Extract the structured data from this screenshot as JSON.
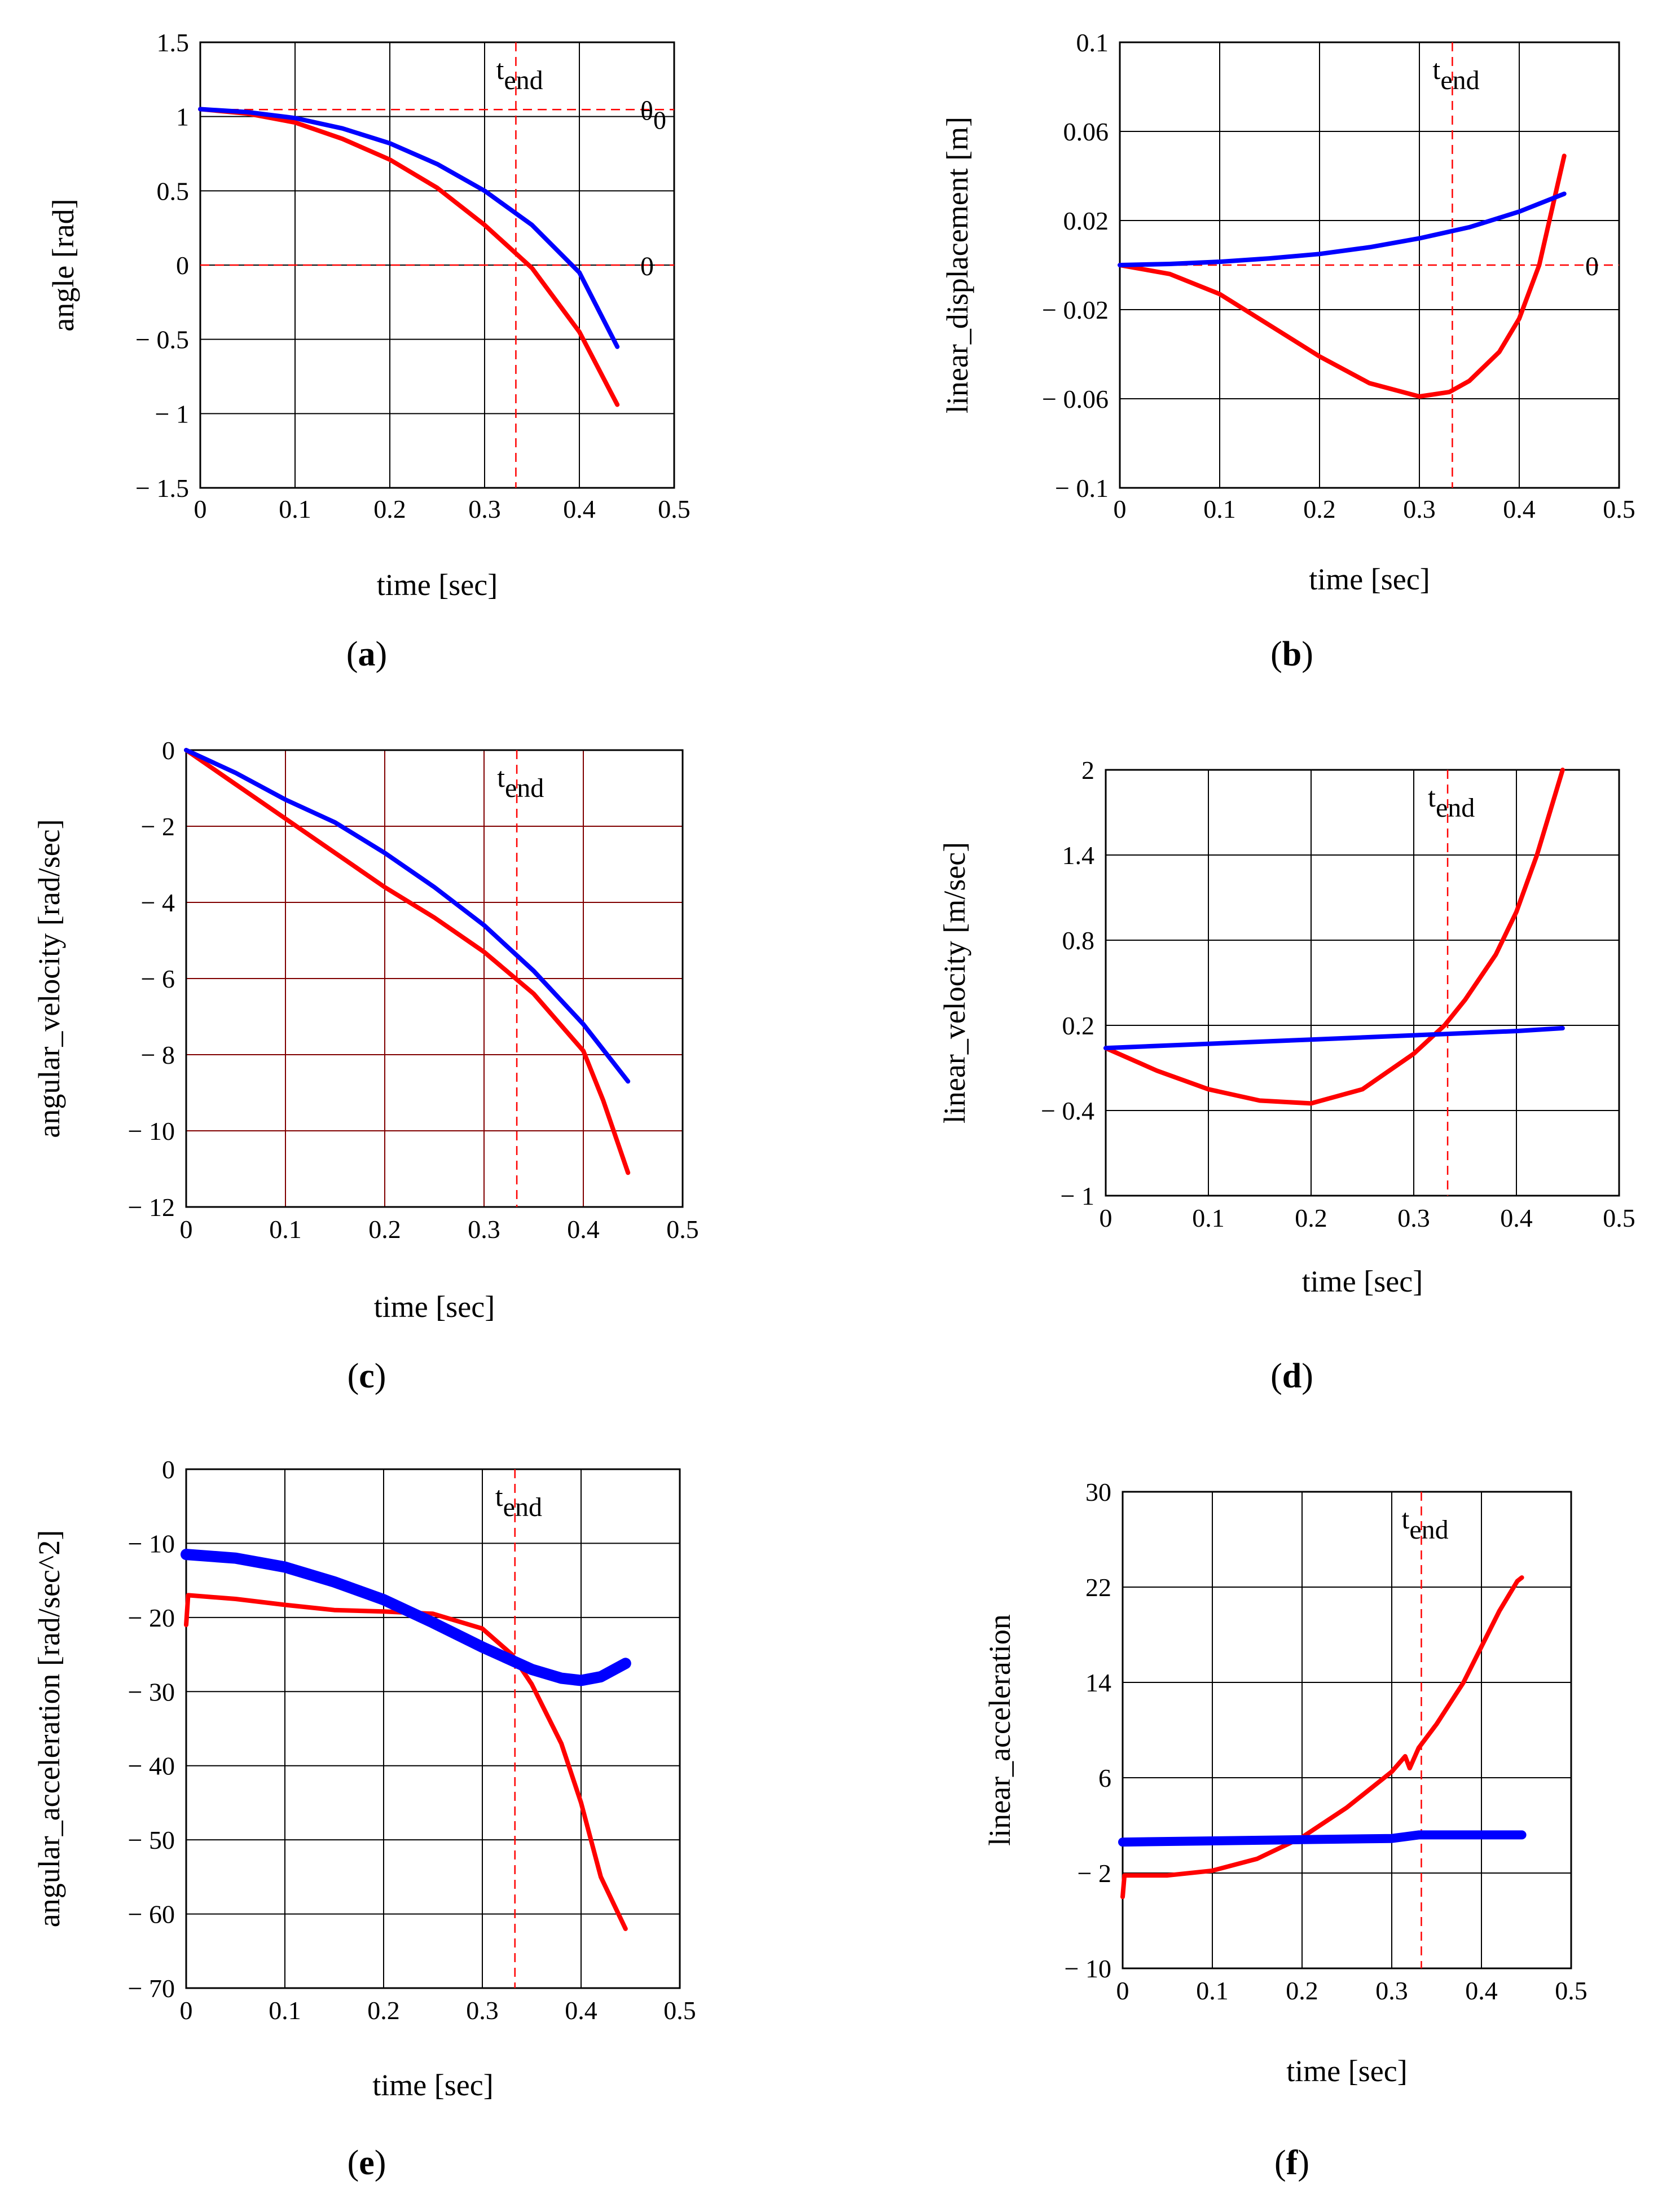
{
  "figure": {
    "panel_labels": [
      "(a)",
      "(b)",
      "(c)",
      "(d)",
      "(e)",
      "(f)"
    ],
    "tend_label": "t",
    "tend_subscript": "end"
  },
  "colors": {
    "series_red": "#ff0000",
    "series_blue": "#0000ff",
    "grid": "#000000",
    "grid_c": "#800000",
    "marker": "#ff0000"
  },
  "chart_data": [
    {
      "id": "a",
      "type": "line",
      "xlabel": "time [sec]",
      "ylabel": "angle [rad]",
      "xlim": [
        0,
        0.5
      ],
      "ylim": [
        -1.5,
        1.5
      ],
      "xticks": [
        0,
        0.1,
        0.2,
        0.3,
        0.4,
        0.5
      ],
      "xtick_labels": [
        "0",
        "0.1",
        "0.2",
        "0.3",
        "0.4",
        "0.5"
      ],
      "yticks": [
        1.5,
        1,
        0.5,
        0,
        -0.5,
        -1,
        -1.5
      ],
      "ytick_labels": [
        "1.5",
        "1",
        "0.5",
        "0",
        "− 0.5",
        "− 1",
        "− 1.5"
      ],
      "tend": 0.333,
      "hlines": [
        {
          "y": 1.047,
          "label": "θ",
          "subscript": "0"
        },
        {
          "y": 0,
          "label": "0",
          "subscript": ""
        }
      ],
      "series": [
        {
          "name": "red",
          "x": [
            0,
            0.05,
            0.1,
            0.15,
            0.2,
            0.25,
            0.3,
            0.35,
            0.4,
            0.44
          ],
          "y": [
            1.05,
            1.02,
            0.96,
            0.85,
            0.71,
            0.52,
            0.27,
            -0.02,
            -0.45,
            -0.94
          ]
        },
        {
          "name": "blue",
          "x": [
            0,
            0.05,
            0.1,
            0.15,
            0.2,
            0.25,
            0.3,
            0.35,
            0.4,
            0.44
          ],
          "y": [
            1.05,
            1.03,
            0.99,
            0.92,
            0.82,
            0.68,
            0.5,
            0.27,
            -0.05,
            -0.55
          ]
        }
      ]
    },
    {
      "id": "b",
      "type": "line",
      "xlabel": "time [sec]",
      "ylabel": "linear_displacement [m]",
      "xlim": [
        0,
        0.5
      ],
      "ylim": [
        -0.1,
        0.1
      ],
      "xticks": [
        0,
        0.1,
        0.2,
        0.3,
        0.4,
        0.5
      ],
      "xtick_labels": [
        "0",
        "0.1",
        "0.2",
        "0.3",
        "0.4",
        "0.5"
      ],
      "yticks": [
        0.1,
        0.06,
        0.02,
        -0.02,
        -0.06,
        -0.1
      ],
      "ytick_labels": [
        "0.1",
        "0.06",
        "0.02",
        "− 0.02",
        "− 0.06",
        "− 0.1"
      ],
      "tend": 0.333,
      "hlines": [
        {
          "y": 0,
          "label": "0",
          "subscript": ""
        }
      ],
      "series": [
        {
          "name": "red",
          "x": [
            0,
            0.05,
            0.1,
            0.15,
            0.2,
            0.25,
            0.3,
            0.33,
            0.35,
            0.38,
            0.4,
            0.42,
            0.445
          ],
          "y": [
            0,
            -0.004,
            -0.013,
            -0.027,
            -0.041,
            -0.053,
            -0.059,
            -0.057,
            -0.052,
            -0.039,
            -0.024,
            0.0,
            0.049
          ]
        },
        {
          "name": "blue",
          "x": [
            0,
            0.05,
            0.1,
            0.15,
            0.2,
            0.25,
            0.3,
            0.35,
            0.4,
            0.445
          ],
          "y": [
            0,
            0.0005,
            0.0015,
            0.003,
            0.005,
            0.008,
            0.012,
            0.017,
            0.024,
            0.032
          ]
        }
      ]
    },
    {
      "id": "c",
      "type": "line",
      "xlabel": "time [sec]",
      "ylabel": "angular_velocity [rad/sec]",
      "xlim": [
        0,
        0.5
      ],
      "ylim": [
        -12,
        0
      ],
      "xticks": [
        0,
        0.1,
        0.2,
        0.3,
        0.4,
        0.5
      ],
      "xtick_labels": [
        "0",
        "0.1",
        "0.2",
        "0.3",
        "0.4",
        "0.5"
      ],
      "yticks": [
        0,
        -2,
        -4,
        -6,
        -8,
        -10,
        -12
      ],
      "ytick_labels": [
        "0",
        "− 2",
        "− 4",
        "− 6",
        "− 8",
        "− 10",
        "− 12"
      ],
      "tend": 0.333,
      "hlines": [],
      "series": [
        {
          "name": "red",
          "x": [
            0,
            0.05,
            0.1,
            0.15,
            0.2,
            0.25,
            0.3,
            0.35,
            0.4,
            0.42,
            0.445
          ],
          "y": [
            0,
            -0.9,
            -1.8,
            -2.7,
            -3.6,
            -4.4,
            -5.3,
            -6.4,
            -7.9,
            -9.2,
            -11.1
          ]
        },
        {
          "name": "blue",
          "x": [
            0,
            0.05,
            0.1,
            0.15,
            0.2,
            0.25,
            0.3,
            0.35,
            0.4,
            0.445
          ],
          "y": [
            0,
            -0.6,
            -1.3,
            -1.9,
            -2.7,
            -3.6,
            -4.6,
            -5.8,
            -7.2,
            -8.7
          ]
        }
      ]
    },
    {
      "id": "d",
      "type": "line",
      "xlabel": "time [sec]",
      "ylabel": "linear_velocity [m/sec]",
      "xlim": [
        0,
        0.5
      ],
      "ylim": [
        -1,
        2
      ],
      "xticks": [
        0,
        0.1,
        0.2,
        0.3,
        0.4,
        0.5
      ],
      "xtick_labels": [
        "0",
        "0.1",
        "0.2",
        "0.3",
        "0.4",
        "0.5"
      ],
      "yticks": [
        2,
        1.4,
        0.8,
        0.2,
        -0.4,
        -1
      ],
      "ytick_labels": [
        "2",
        "1.4",
        "0.8",
        "0.2",
        "− 0.4",
        "− 1"
      ],
      "tend": 0.333,
      "hlines": [],
      "series": [
        {
          "name": "red",
          "x": [
            0,
            0.05,
            0.1,
            0.15,
            0.2,
            0.25,
            0.3,
            0.33,
            0.35,
            0.38,
            0.4,
            0.42,
            0.445
          ],
          "y": [
            0.04,
            -0.12,
            -0.25,
            -0.33,
            -0.35,
            -0.25,
            0.0,
            0.2,
            0.38,
            0.7,
            1.0,
            1.4,
            2.0
          ]
        },
        {
          "name": "blue",
          "x": [
            0,
            0.1,
            0.2,
            0.3,
            0.4,
            0.445
          ],
          "y": [
            0.04,
            0.07,
            0.1,
            0.13,
            0.16,
            0.18
          ]
        }
      ]
    },
    {
      "id": "e",
      "type": "line",
      "xlabel": "time [sec]",
      "ylabel": "angular_acceleration [rad/sec^2]",
      "xlim": [
        0,
        0.5
      ],
      "ylim": [
        -70,
        0
      ],
      "xticks": [
        0,
        0.1,
        0.2,
        0.3,
        0.4,
        0.5
      ],
      "xtick_labels": [
        "0",
        "0.1",
        "0.2",
        "0.3",
        "0.4",
        "0.5"
      ],
      "yticks": [
        0,
        -10,
        -20,
        -30,
        -40,
        -50,
        -60,
        -70
      ],
      "ytick_labels": [
        "0",
        "− 10",
        "− 20",
        "− 30",
        "− 40",
        "− 50",
        "− 60",
        "− 70"
      ],
      "tend": 0.333,
      "hlines": [],
      "series": [
        {
          "name": "red",
          "x": [
            0,
            0.002,
            0.05,
            0.1,
            0.15,
            0.2,
            0.25,
            0.3,
            0.33,
            0.35,
            0.38,
            0.4,
            0.42,
            0.445
          ],
          "y": [
            -21,
            -17,
            -17.5,
            -18.3,
            -19,
            -19.2,
            -19.5,
            -21.5,
            -25,
            -29,
            -37,
            -45,
            -55,
            -62
          ]
        },
        {
          "name": "blue",
          "x": [
            0,
            0.05,
            0.1,
            0.15,
            0.2,
            0.25,
            0.3,
            0.35,
            0.38,
            0.4,
            0.42,
            0.445
          ],
          "y": [
            -11.5,
            -12,
            -13.2,
            -15.2,
            -17.6,
            -20.7,
            -24,
            -27,
            -28.2,
            -28.5,
            -28,
            -26.2
          ]
        }
      ]
    },
    {
      "id": "f",
      "type": "line",
      "xlabel": "time [sec]",
      "ylabel": "linear_acceleration",
      "xlim": [
        0,
        0.5
      ],
      "ylim": [
        -10,
        30
      ],
      "xticks": [
        0,
        0.1,
        0.2,
        0.3,
        0.4,
        0.5
      ],
      "xtick_labels": [
        "0",
        "0.1",
        "0.2",
        "0.3",
        "0.4",
        "0.5"
      ],
      "yticks": [
        30,
        22,
        14,
        6,
        -2,
        -10
      ],
      "ytick_labels": [
        "30",
        "22",
        "14",
        "6",
        "− 2",
        "− 10"
      ],
      "tend": 0.333,
      "hlines": [],
      "series": [
        {
          "name": "red",
          "x": [
            0,
            0.002,
            0.05,
            0.1,
            0.15,
            0.2,
            0.25,
            0.3,
            0.315,
            0.32,
            0.33,
            0.35,
            0.38,
            0.4,
            0.42,
            0.44,
            0.445
          ],
          "y": [
            -4,
            -2.2,
            -2.2,
            -1.8,
            -0.8,
            1,
            3.5,
            6.5,
            7.8,
            6.8,
            8.5,
            10.5,
            14,
            17,
            20,
            22.5,
            22.8
          ]
        },
        {
          "name": "blue",
          "x": [
            0,
            0.1,
            0.2,
            0.3,
            0.33,
            0.35,
            0.4,
            0.445
          ],
          "y": [
            0.6,
            0.7,
            0.8,
            0.9,
            1.2,
            1.2,
            1.2,
            1.2
          ]
        }
      ]
    }
  ]
}
